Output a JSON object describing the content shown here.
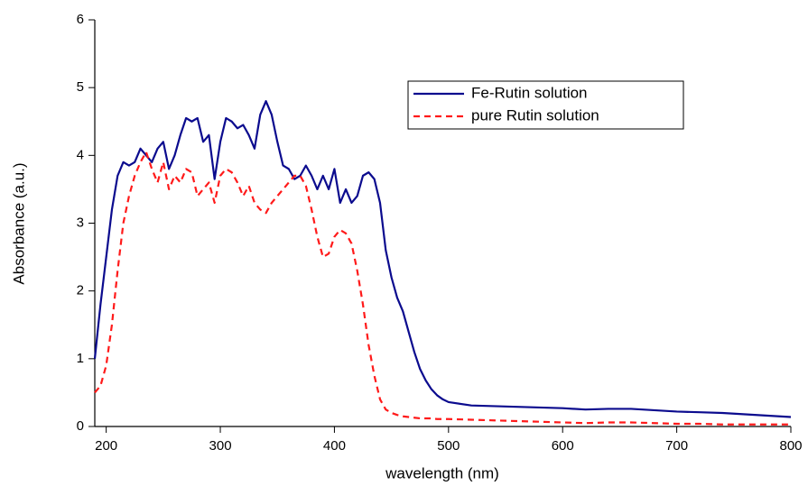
{
  "chart_data": {
    "type": "line",
    "x_label": "wavelength (nm)",
    "y_label": "Absorbance (a.u.)",
    "xlim": [
      190,
      800
    ],
    "ylim": [
      0,
      6
    ],
    "xticks": [
      200,
      300,
      400,
      500,
      600,
      700,
      800
    ],
    "yticks": [
      0,
      1,
      2,
      3,
      4,
      5,
      6
    ],
    "legend": "upper right",
    "x": [
      190,
      195,
      200,
      205,
      210,
      215,
      220,
      225,
      230,
      235,
      240,
      245,
      250,
      255,
      260,
      265,
      270,
      275,
      280,
      285,
      290,
      295,
      300,
      305,
      310,
      315,
      320,
      325,
      330,
      335,
      340,
      345,
      350,
      355,
      360,
      365,
      370,
      375,
      380,
      385,
      390,
      395,
      400,
      405,
      410,
      415,
      420,
      425,
      430,
      435,
      440,
      445,
      450,
      455,
      460,
      465,
      470,
      475,
      480,
      485,
      490,
      495,
      500,
      520,
      540,
      560,
      580,
      600,
      620,
      640,
      660,
      680,
      700,
      720,
      740,
      760,
      780,
      800
    ],
    "series": [
      {
        "name": "Fe-Rutin solution",
        "color": "#0b0b8e",
        "dash": false,
        "values": [
          1.0,
          1.8,
          2.5,
          3.2,
          3.7,
          3.9,
          3.85,
          3.9,
          4.1,
          4.0,
          3.9,
          4.1,
          4.2,
          3.8,
          4.0,
          4.3,
          4.55,
          4.5,
          4.55,
          4.2,
          4.3,
          3.65,
          4.2,
          4.55,
          4.5,
          4.4,
          4.45,
          4.3,
          4.1,
          4.6,
          4.8,
          4.6,
          4.2,
          3.85,
          3.8,
          3.65,
          3.7,
          3.85,
          3.7,
          3.5,
          3.7,
          3.5,
          3.8,
          3.3,
          3.5,
          3.3,
          3.4,
          3.7,
          3.75,
          3.65,
          3.3,
          2.6,
          2.2,
          1.9,
          1.7,
          1.4,
          1.1,
          0.85,
          0.68,
          0.55,
          0.46,
          0.4,
          0.36,
          0.31,
          0.3,
          0.29,
          0.28,
          0.27,
          0.25,
          0.26,
          0.26,
          0.24,
          0.22,
          0.21,
          0.2,
          0.18,
          0.16,
          0.14
        ]
      },
      {
        "name": "pure Rutin solution",
        "color": "#ff1a1a",
        "dash": true,
        "values": [
          0.5,
          0.6,
          0.9,
          1.5,
          2.3,
          3.0,
          3.4,
          3.7,
          3.9,
          4.05,
          3.8,
          3.6,
          3.9,
          3.5,
          3.7,
          3.6,
          3.8,
          3.75,
          3.4,
          3.5,
          3.6,
          3.3,
          3.7,
          3.8,
          3.75,
          3.6,
          3.4,
          3.55,
          3.3,
          3.2,
          3.15,
          3.3,
          3.4,
          3.5,
          3.6,
          3.7,
          3.7,
          3.55,
          3.2,
          2.8,
          2.5,
          2.55,
          2.8,
          2.9,
          2.85,
          2.7,
          2.3,
          1.8,
          1.2,
          0.75,
          0.4,
          0.25,
          0.2,
          0.17,
          0.15,
          0.14,
          0.13,
          0.12,
          0.12,
          0.12,
          0.11,
          0.11,
          0.11,
          0.1,
          0.09,
          0.08,
          0.07,
          0.06,
          0.05,
          0.06,
          0.06,
          0.05,
          0.04,
          0.04,
          0.03,
          0.03,
          0.03,
          0.03
        ]
      }
    ]
  }
}
